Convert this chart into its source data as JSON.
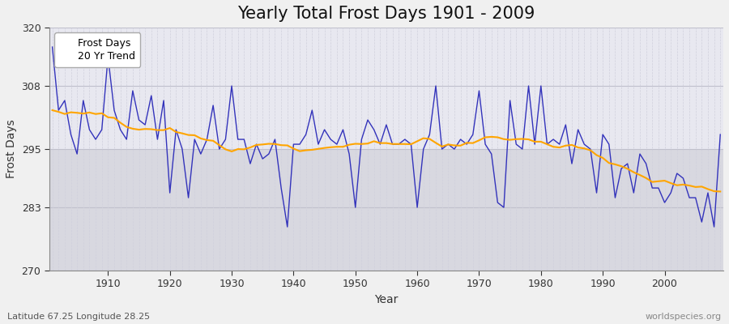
{
  "title": "Yearly Total Frost Days 1901 - 2009",
  "xlabel": "Year",
  "ylabel": "Frost Days",
  "subtitle": "Latitude 67.25 Longitude 28.25",
  "watermark": "worldspecies.org",
  "years": [
    1901,
    1902,
    1903,
    1904,
    1905,
    1906,
    1907,
    1908,
    1909,
    1910,
    1911,
    1912,
    1913,
    1914,
    1915,
    1916,
    1917,
    1918,
    1919,
    1920,
    1921,
    1922,
    1923,
    1924,
    1925,
    1926,
    1927,
    1928,
    1929,
    1930,
    1931,
    1932,
    1933,
    1934,
    1935,
    1936,
    1937,
    1938,
    1939,
    1940,
    1941,
    1942,
    1943,
    1944,
    1945,
    1946,
    1947,
    1948,
    1949,
    1950,
    1951,
    1952,
    1953,
    1954,
    1955,
    1956,
    1957,
    1958,
    1959,
    1960,
    1961,
    1962,
    1963,
    1964,
    1965,
    1966,
    1967,
    1968,
    1969,
    1970,
    1971,
    1972,
    1973,
    1974,
    1975,
    1976,
    1977,
    1978,
    1979,
    1980,
    1981,
    1982,
    1983,
    1984,
    1985,
    1986,
    1987,
    1988,
    1989,
    1990,
    1991,
    1992,
    1993,
    1994,
    1995,
    1996,
    1997,
    1998,
    1999,
    2000,
    2001,
    2002,
    2003,
    2004,
    2005,
    2006,
    2007,
    2008,
    2009
  ],
  "frost_days": [
    316,
    303,
    305,
    298,
    294,
    305,
    299,
    297,
    299,
    314,
    303,
    299,
    297,
    307,
    301,
    300,
    306,
    297,
    305,
    286,
    299,
    295,
    285,
    297,
    294,
    297,
    304,
    295,
    297,
    308,
    297,
    297,
    292,
    296,
    293,
    294,
    297,
    287,
    279,
    296,
    296,
    298,
    303,
    296,
    299,
    297,
    296,
    299,
    294,
    283,
    297,
    301,
    299,
    296,
    300,
    296,
    296,
    297,
    296,
    283,
    295,
    298,
    308,
    295,
    296,
    295,
    297,
    296,
    298,
    307,
    296,
    294,
    284,
    283,
    305,
    296,
    295,
    308,
    296,
    308,
    296,
    297,
    296,
    300,
    292,
    299,
    296,
    295,
    286,
    298,
    296,
    285,
    291,
    292,
    286,
    294,
    292,
    287,
    287,
    284,
    286,
    290,
    289,
    285,
    285,
    280,
    286,
    279,
    298
  ],
  "ylim": [
    270,
    320
  ],
  "yticks": [
    270,
    283,
    295,
    308,
    320
  ],
  "xticks": [
    1910,
    1920,
    1930,
    1940,
    1950,
    1960,
    1970,
    1980,
    1990,
    2000
  ],
  "line_color": "#3333bb",
  "trend_color": "#FFA500",
  "fig_bg_color": "#f0f0f0",
  "plot_bg_upper": "#e8e8f0",
  "plot_bg_lower": "#d8d8e0",
  "grid_major_color": "#c0c0cc",
  "grid_minor_color": "#d0d0dc",
  "title_fontsize": 15,
  "label_fontsize": 10,
  "tick_fontsize": 9,
  "legend_fontsize": 9
}
